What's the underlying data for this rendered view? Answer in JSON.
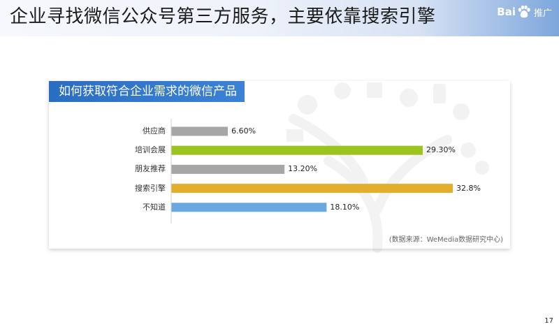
{
  "slide": {
    "title": "企业寻找微信公众号第三方服务，主要依靠搜索引擎",
    "page_number": "17"
  },
  "logo": {
    "text": "Bai",
    "icon": "baidu-paw-icon",
    "tag": "推广"
  },
  "chart_data": {
    "type": "bar",
    "orientation": "horizontal",
    "title": "如何获取符合企业需求的微信产品",
    "categories": [
      "供应商",
      "培训会展",
      "朋友推荐",
      "搜索引擎",
      "不知道"
    ],
    "values": [
      6.6,
      29.3,
      13.2,
      32.8,
      18.1
    ],
    "value_labels": [
      "6.60%",
      "29.30%",
      "13.20%",
      "32.8%",
      "18.10%"
    ],
    "bar_colors": [
      "#a6a6a6",
      "#9cc31f",
      "#a6a6a6",
      "#e3ad2e",
      "#6aa8e0"
    ],
    "xlim": [
      0,
      32.8
    ],
    "xlabel": "",
    "ylabel": "",
    "grid": false,
    "source": "(数据来源：WeMedia数据研究中心)"
  },
  "colors": {
    "title_bar": "#2a6ec2",
    "header_accent": "#7da6dc"
  }
}
